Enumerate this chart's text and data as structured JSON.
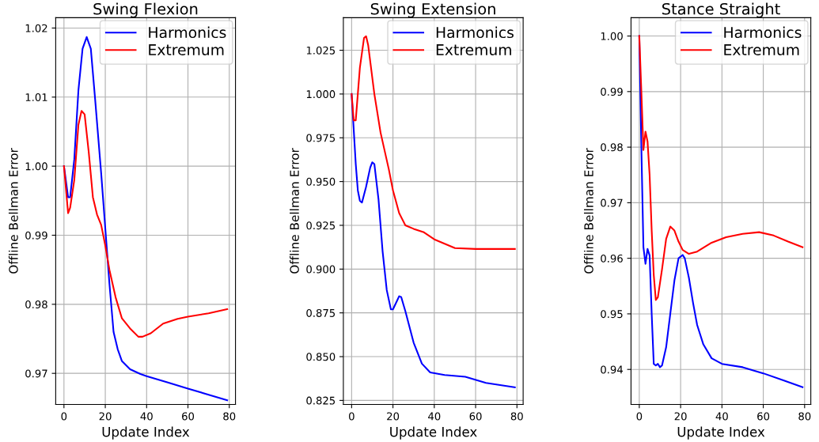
{
  "chart_data": [
    {
      "type": "line",
      "title": "Swing Flexion",
      "xlabel": "Update Index",
      "ylabel": "Offline Bellman Error",
      "xlim": [
        -4,
        83
      ],
      "xticks": [
        0,
        20,
        40,
        60,
        80
      ],
      "ylim": [
        0.9655,
        1.0215
      ],
      "yticks": [
        0.97,
        0.98,
        0.99,
        {
          "value": 1.0,
          "label": "1.00"
        },
        1.01,
        1.02
      ],
      "grid": true,
      "legend": "top right",
      "series": [
        {
          "name": "Harmonics",
          "color": "#0000ff",
          "x": [
            0,
            2,
            3,
            5,
            7,
            9,
            11,
            13,
            15,
            18,
            20,
            22,
            24,
            26,
            28,
            32,
            37,
            40,
            50,
            60,
            70,
            79
          ],
          "values": [
            1.0,
            0.9955,
            0.9955,
            1.001,
            1.011,
            1.017,
            1.0187,
            1.017,
            1.01,
            0.999,
            0.991,
            0.983,
            0.976,
            0.9735,
            0.9718,
            0.9706,
            0.9699,
            0.9696,
            0.9687,
            0.9678,
            0.9669,
            0.9661
          ]
        },
        {
          "name": "Extremum",
          "color": "#ff0000",
          "x": [
            0,
            2,
            3,
            5,
            7,
            8.5,
            10,
            12,
            14,
            16,
            18,
            20,
            22,
            25,
            28,
            32,
            36,
            38,
            42,
            48,
            55,
            60,
            70,
            79
          ],
          "values": [
            1.0,
            0.9932,
            0.994,
            0.998,
            1.006,
            1.008,
            1.0075,
            1.002,
            0.9955,
            0.993,
            0.9915,
            0.9885,
            0.985,
            0.981,
            0.978,
            0.9765,
            0.9753,
            0.9753,
            0.9758,
            0.9772,
            0.9779,
            0.9782,
            0.9787,
            0.9793
          ]
        }
      ]
    },
    {
      "type": "line",
      "title": "Swing Extension",
      "xlabel": "Update Index",
      "ylabel": "Offline Bellman Error",
      "xlim": [
        -4,
        83
      ],
      "xticks": [
        0,
        20,
        40,
        60,
        80
      ],
      "ylim": [
        0.8227,
        1.0436
      ],
      "yticks": [
        0.825,
        {
          "value": 0.85,
          "label": "0.850"
        },
        0.875,
        {
          "value": 0.9,
          "label": "0.900"
        },
        0.925,
        {
          "value": 0.95,
          "label": "0.950"
        },
        0.975,
        {
          "value": 1.0,
          "label": "1.000"
        },
        1.025
      ],
      "grid": true,
      "legend": "top right",
      "series": [
        {
          "name": "Harmonics",
          "color": "#0000ff",
          "x": [
            0,
            2,
            3,
            4,
            5,
            7,
            9,
            10,
            11,
            13,
            15,
            17,
            19,
            20,
            22,
            23,
            24,
            26,
            30,
            34,
            38,
            45,
            55,
            65,
            79
          ],
          "values": [
            1.0,
            0.96,
            0.945,
            0.939,
            0.938,
            0.947,
            0.958,
            0.961,
            0.96,
            0.94,
            0.91,
            0.888,
            0.877,
            0.877,
            0.882,
            0.8845,
            0.884,
            0.876,
            0.858,
            0.846,
            0.841,
            0.8395,
            0.8385,
            0.835,
            0.8325
          ]
        },
        {
          "name": "Extremum",
          "color": "#ff0000",
          "x": [
            0,
            1,
            2,
            4,
            6,
            7,
            8,
            11,
            14,
            18,
            20,
            23,
            26,
            30,
            35,
            40,
            50,
            60,
            79
          ],
          "values": [
            1.0,
            0.985,
            0.985,
            1.015,
            1.032,
            1.033,
            1.028,
            1.0,
            0.978,
            0.957,
            0.945,
            0.932,
            0.925,
            0.923,
            0.921,
            0.917,
            0.912,
            0.9115,
            0.9115
          ]
        }
      ]
    },
    {
      "type": "line",
      "title": "Stance Straight",
      "xlabel": "Update Index",
      "ylabel": "Offline Bellman Error",
      "xlim": [
        -4,
        83
      ],
      "xticks": [
        0,
        20,
        40,
        60,
        80
      ],
      "ylim": [
        0.9337,
        1.0033
      ],
      "yticks": [
        0.94,
        0.95,
        0.96,
        0.97,
        0.98,
        0.99,
        {
          "value": 1.0,
          "label": "1.00"
        }
      ],
      "grid": true,
      "legend": "top right",
      "series": [
        {
          "name": "Harmonics",
          "color": "#0000ff",
          "x": [
            0,
            1,
            2,
            3,
            4,
            5,
            6,
            7,
            8,
            9,
            10,
            11,
            13,
            15,
            17,
            19,
            21,
            22,
            24,
            26,
            28,
            31,
            35,
            40,
            50,
            60,
            70,
            79
          ],
          "values": [
            1.0,
            0.98,
            0.962,
            0.959,
            0.9617,
            0.9605,
            0.95,
            0.941,
            0.9407,
            0.941,
            0.9404,
            0.9407,
            0.944,
            0.95,
            0.956,
            0.96,
            0.9606,
            0.96,
            0.9565,
            0.952,
            0.948,
            0.9445,
            0.942,
            0.941,
            0.9404,
            0.9393,
            0.938,
            0.9368
          ]
        },
        {
          "name": "Extremum",
          "color": "#ff0000",
          "x": [
            0,
            1,
            2,
            3,
            4,
            5,
            6,
            7,
            8,
            9,
            11,
            13,
            15,
            17,
            19,
            21,
            24,
            28,
            35,
            42,
            50,
            58,
            65,
            72,
            79
          ],
          "values": [
            1.0,
            0.99,
            0.9795,
            0.9828,
            0.981,
            0.975,
            0.965,
            0.957,
            0.9525,
            0.953,
            0.958,
            0.9635,
            0.9657,
            0.965,
            0.963,
            0.9615,
            0.9608,
            0.9612,
            0.9628,
            0.9638,
            0.9644,
            0.9647,
            0.9641,
            0.963,
            0.962
          ]
        }
      ]
    }
  ]
}
